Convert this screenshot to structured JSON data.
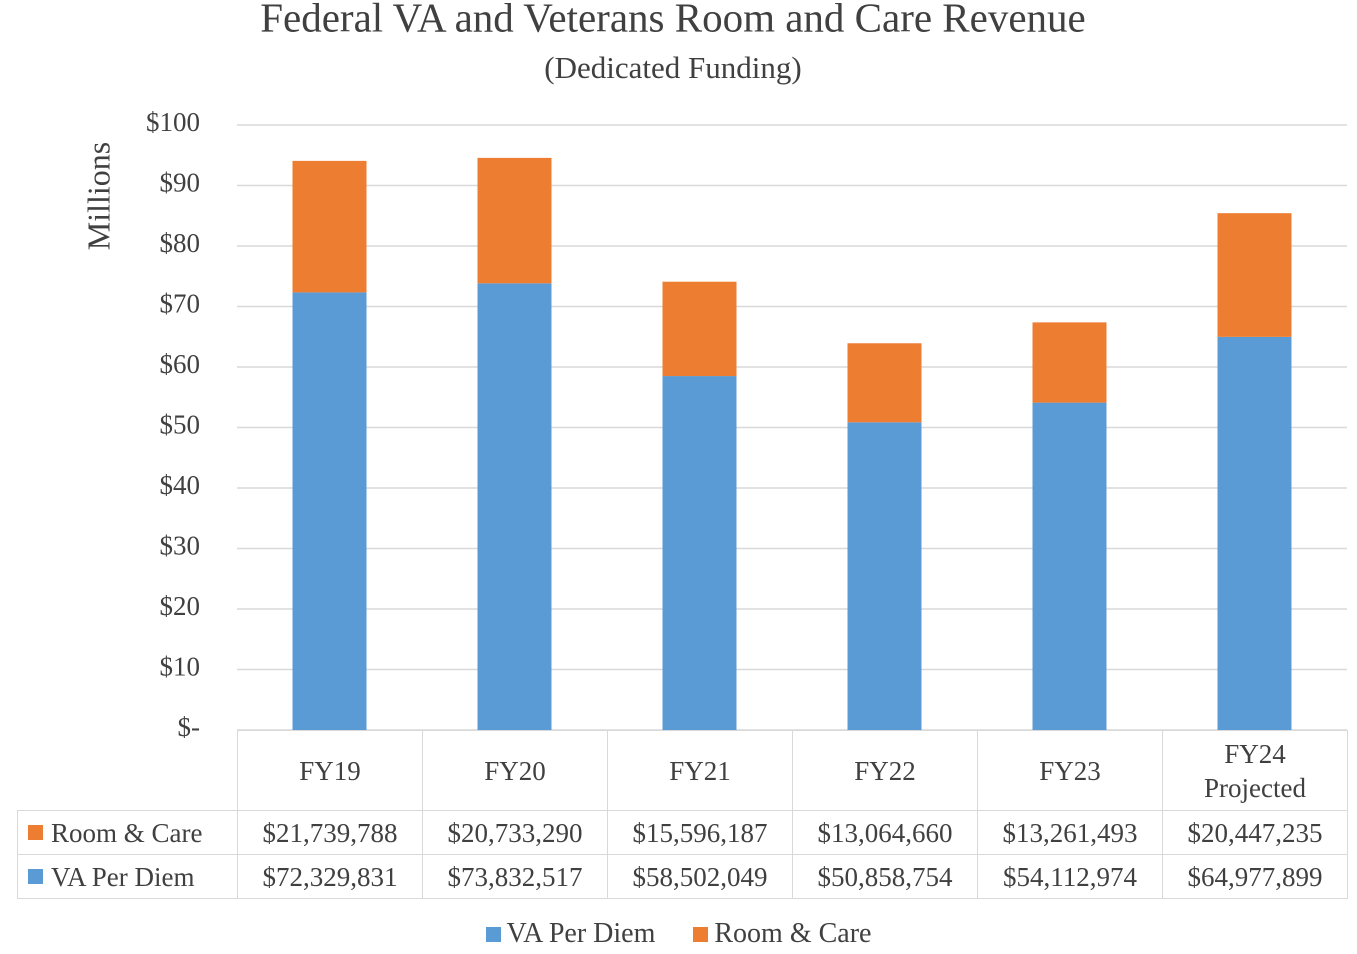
{
  "chart_data": {
    "type": "stacked_bar",
    "title": "Federal VA and Veterans Room and Care Revenue",
    "subtitle": "(Dedicated Funding)",
    "y_label": "Millions",
    "categories": [
      "FY19",
      "FY20",
      "FY21",
      "FY22",
      "FY23",
      "FY24 Projected"
    ],
    "series": [
      {
        "name": "VA Per Diem",
        "color": "#5b9bd5",
        "values": [
          72.329831,
          73.832517,
          58.502049,
          50.858754,
          54.112974,
          64.977899
        ],
        "value_labels": [
          "$72,329,831",
          "$73,832,517",
          "$58,502,049",
          "$50,858,754",
          "$54,112,974",
          "$64,977,899"
        ]
      },
      {
        "name": "Room & Care",
        "color": "#ed7d31",
        "values": [
          21.739788,
          20.73329,
          15.596187,
          13.06466,
          13.261493,
          20.447235
        ],
        "value_labels": [
          "$21,739,788",
          "$20,733,290",
          "$15,596,187",
          "$13,064,660",
          "$13,261,493",
          "$20,447,235"
        ]
      }
    ],
    "ylim": [
      0,
      100
    ],
    "yticks": [
      {
        "value": 0,
        "label": "$-"
      },
      {
        "value": 10,
        "label": "$10"
      },
      {
        "value": 20,
        "label": "$20"
      },
      {
        "value": 30,
        "label": "$30"
      },
      {
        "value": 40,
        "label": "$40"
      },
      {
        "value": 50,
        "label": "$50"
      },
      {
        "value": 60,
        "label": "$60"
      },
      {
        "value": 70,
        "label": "$70"
      },
      {
        "value": 80,
        "label": "$80"
      },
      {
        "value": 90,
        "label": "$90"
      },
      {
        "value": 100,
        "label": "$100"
      }
    ],
    "grid": true,
    "legend": "bottom"
  }
}
